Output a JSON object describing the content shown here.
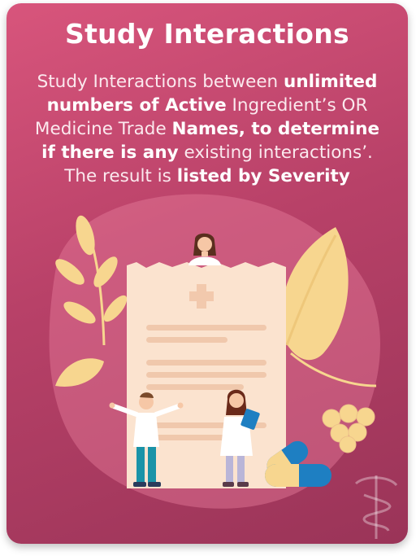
{
  "card": {
    "title": "Study Interactions",
    "description": {
      "p1": "Study Interactions between ",
      "b1": "unlimited numbers of Active",
      "p2": " Ingredient’s OR Medicine Trade ",
      "b2": "Names, to determine if there is any",
      "p3": " existing interactions’. The result is ",
      "b3": "listed by Severity"
    }
  },
  "colors": {
    "card_top": "#d8557c",
    "card_bottom": "#9a3458",
    "paper": "#fbe3cf",
    "leaf": "#f7d68f",
    "pill_blue": "#1e7fc2"
  },
  "icons": {
    "document": "medical-document-icon",
    "watermark": "caduceus-icon"
  }
}
